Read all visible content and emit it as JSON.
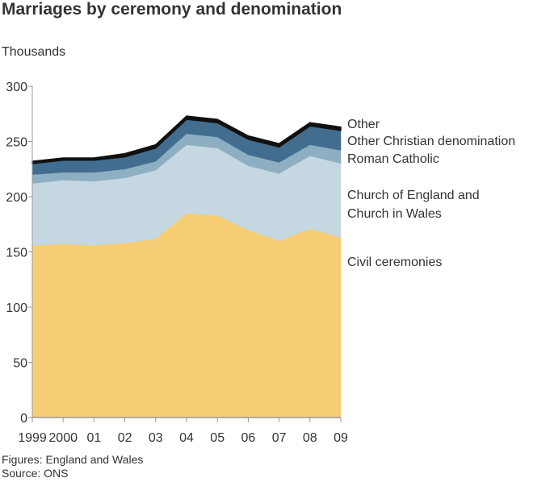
{
  "chart_data": {
    "type": "stacked_area",
    "title": "Marriages by ceremony and denomination",
    "y_label": "Thousands",
    "categories": [
      "1999",
      "2000",
      "01",
      "02",
      "03",
      "04",
      "05",
      "06",
      "07",
      "08",
      "09"
    ],
    "series": [
      {
        "name": "Civil ceremonies",
        "color": "#f6cd74",
        "values": [
          156,
          157,
          156,
          158,
          162,
          185,
          183,
          170,
          160,
          171,
          163
        ]
      },
      {
        "name": "Church of England and Church in Wales",
        "color": "#c5d7e1",
        "values": [
          56,
          58,
          58,
          59,
          62,
          62,
          61,
          58,
          61,
          66,
          67
        ]
      },
      {
        "name": "Roman Catholic",
        "color": "#8eafc2",
        "values": [
          8,
          7,
          8,
          8,
          8,
          10,
          10,
          10,
          10,
          10,
          12
        ]
      },
      {
        "name": "Other Christian denomination",
        "color": "#426d8f",
        "values": [
          10,
          11,
          11,
          11,
          12,
          13,
          13,
          14,
          14,
          17,
          18
        ]
      },
      {
        "name": "Other",
        "color": "#111111",
        "values": [
          2,
          2,
          2,
          3,
          3,
          3,
          3,
          3,
          3,
          3,
          3
        ]
      }
    ],
    "ylim": [
      0,
      300
    ],
    "yticks": [
      0,
      50,
      100,
      150,
      200,
      250,
      300
    ],
    "notes": [
      "Figures: England and Wales",
      "Source: ONS"
    ]
  }
}
